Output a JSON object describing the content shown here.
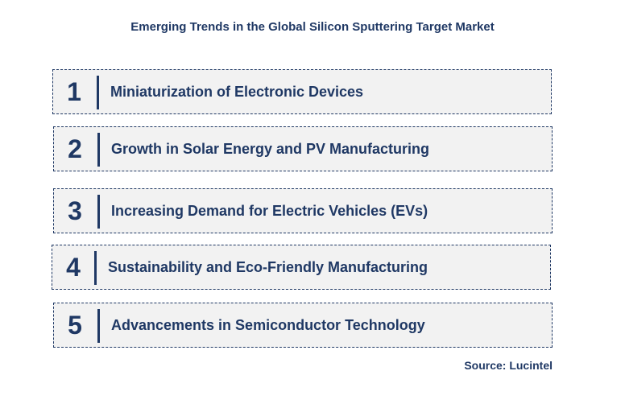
{
  "title": "Emerging Trends in the Global Silicon Sputtering Target Market",
  "trends": [
    {
      "number": "1",
      "label": "Miniaturization of Electronic Devices"
    },
    {
      "number": "2",
      "label": "Growth in Solar Energy and PV Manufacturing"
    },
    {
      "number": "3",
      "label": "Increasing Demand for Electric Vehicles (EVs)"
    },
    {
      "number": "4",
      "label": "Sustainability and Eco-Friendly Manufacturing"
    },
    {
      "number": "5",
      "label": "Advancements in Semiconductor Technology"
    }
  ],
  "source": "Source: Lucintel",
  "colors": {
    "text": "#1f3864",
    "box_fill": "#f2f2f2",
    "box_border": "#1f3864"
  }
}
